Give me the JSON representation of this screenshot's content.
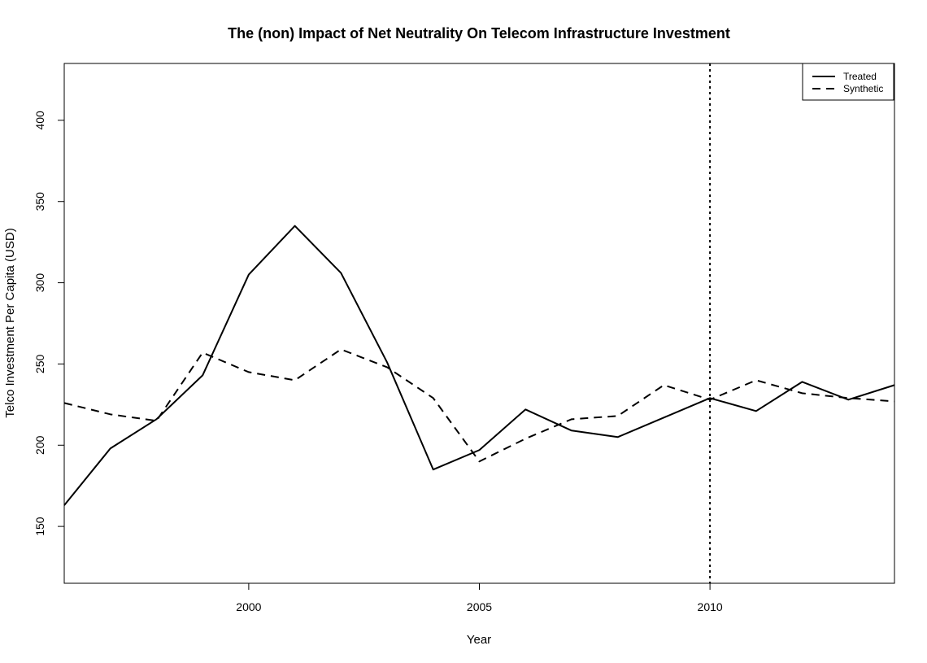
{
  "chart_data": {
    "type": "line",
    "title": "The (non) Impact of Net Neutrality On Telecom Infrastructure Investment",
    "xlabel": "Year",
    "ylabel": "Telco Investment Per Capita (USD)",
    "xlim": [
      1996,
      2014
    ],
    "ylim": [
      115,
      435
    ],
    "xticks": [
      2000,
      2005,
      2010
    ],
    "yticks": [
      150,
      200,
      250,
      300,
      350,
      400
    ],
    "x": [
      1996,
      1997,
      1998,
      1999,
      2000,
      2001,
      2002,
      2003,
      2004,
      2005,
      2006,
      2007,
      2008,
      2009,
      2010,
      2011,
      2012,
      2013,
      2014
    ],
    "series": [
      {
        "name": "Treated",
        "line_style": "solid",
        "color": "#000000",
        "values": [
          163,
          198,
          216,
          243,
          305,
          335,
          306,
          251,
          185,
          197,
          222,
          209,
          205,
          217,
          229,
          221,
          239,
          228,
          237
        ]
      },
      {
        "name": "Synthetic",
        "line_style": "dashed",
        "color": "#000000",
        "values": [
          226,
          219,
          215,
          257,
          245,
          240,
          259,
          248,
          229,
          190,
          204,
          216,
          218,
          237,
          228,
          240,
          232,
          229,
          227
        ]
      }
    ],
    "vline": {
      "x": 2010,
      "line_style": "dotted"
    },
    "legend": {
      "position": "top-right",
      "entries": [
        "Treated",
        "Synthetic"
      ]
    },
    "grid": false
  }
}
